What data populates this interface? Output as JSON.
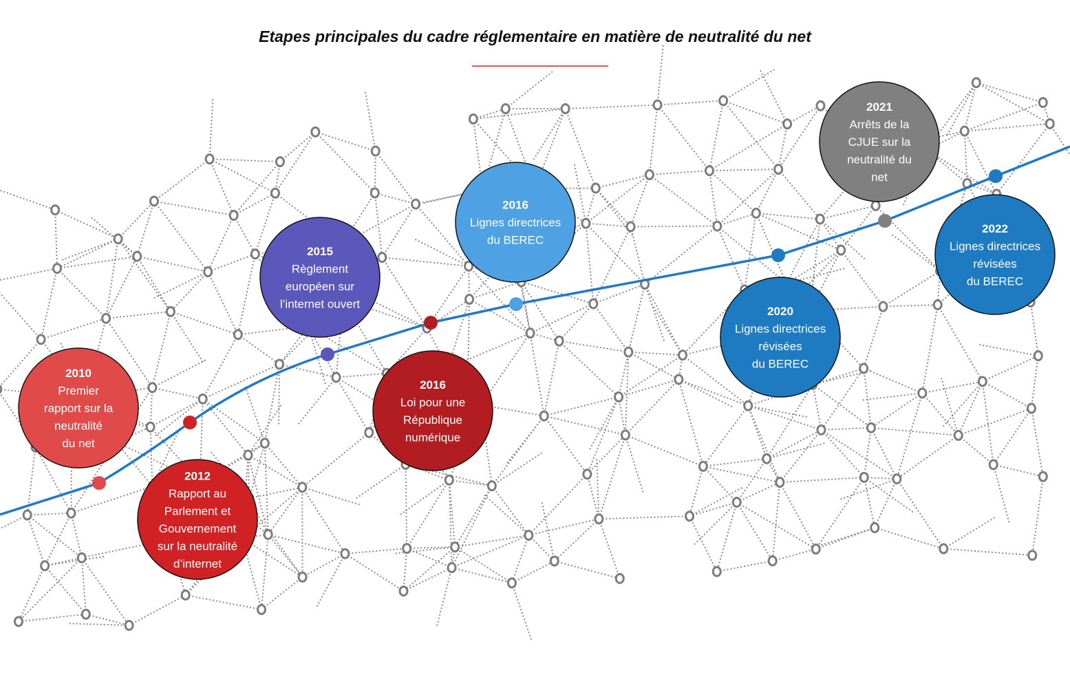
{
  "title": "Etapes principales du cadre réglementaire en matière de neutralité du net",
  "colors": {
    "timeline": "#1f78c8",
    "network": "#8a8a8a",
    "title_rule": "#e05a5a"
  },
  "milestones": [
    {
      "year": "2010",
      "lines": [
        "Premier",
        "rapport sur la",
        "neutralité",
        "du net"
      ],
      "color": "#e04b4a"
    },
    {
      "year": "2012",
      "lines": [
        "Rapport au",
        "Parlement et",
        "Gouvernement",
        "sur la neutralité",
        "d’internet"
      ],
      "color": "#d02124"
    },
    {
      "year": "2015",
      "lines": [
        "Règlement",
        "européen sur",
        "l’internet ouvert"
      ],
      "color": "#5b57bb"
    },
    {
      "year": "2016",
      "lines": [
        "Loi pour une",
        "République",
        "numérique"
      ],
      "color": "#b11d20"
    },
    {
      "year": "2016",
      "lines": [
        "Lignes directrices",
        "du BEREC"
      ],
      "color": "#4ea1e2"
    },
    {
      "year": "2020",
      "lines": [
        "Lignes directrices",
        "révisées",
        "du BEREC"
      ],
      "color": "#1f7bc1"
    },
    {
      "year": "2021",
      "lines": [
        "Arrêts de la",
        "CJUE sur la",
        "neutralité du",
        "net"
      ],
      "color": "#808080"
    },
    {
      "year": "2022",
      "lines": [
        "Lignes directrices",
        "révisées",
        "du BEREC"
      ],
      "color": "#1f7bc1"
    }
  ]
}
